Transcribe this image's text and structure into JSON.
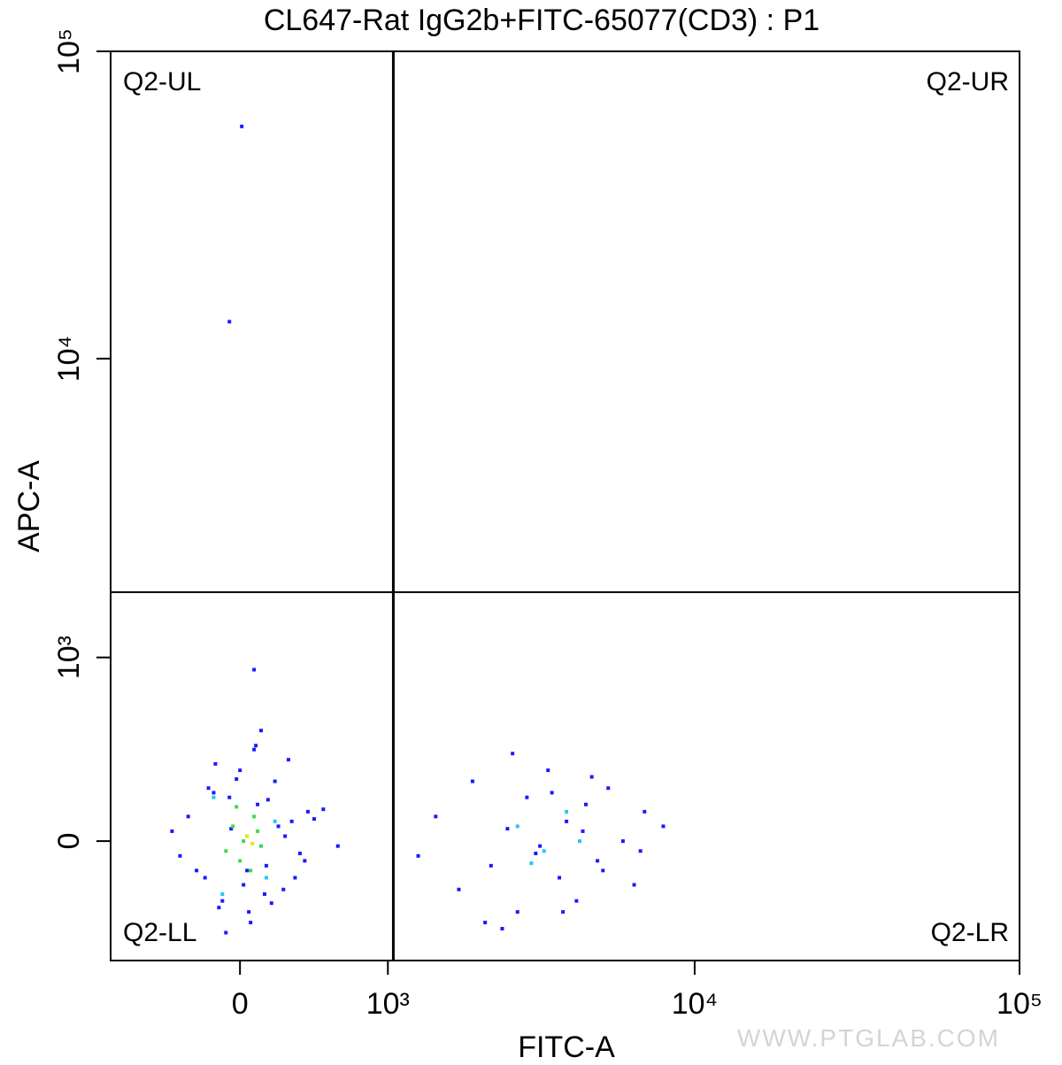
{
  "chart_data": {
    "type": "scatter",
    "title": "CL647-Rat IgG2b+FITC-65077(CD3) : P1",
    "x_label": "FITC-A",
    "y_label": "APC-A",
    "xscale": "biexponential",
    "yscale": "biexponential",
    "xlim": [
      -840,
      100000
    ],
    "ylim": [
      -550,
      100000
    ],
    "xticks": [
      0,
      {
        "value": 1000,
        "label": "10³"
      },
      {
        "value": 10000,
        "label": "10⁴"
      },
      {
        "value": 100000,
        "label": "10⁵"
      }
    ],
    "yticks": [
      0,
      {
        "value": 1000,
        "label": "10³"
      },
      {
        "value": 10000,
        "label": "10⁴"
      },
      {
        "value": 100000,
        "label": "10⁵"
      }
    ],
    "gate": {
      "x": 1050,
      "y": 1700
    },
    "quadrants": [
      "Q2-UL",
      "Q2-UR",
      "Q2-LL",
      "Q2-LR"
    ],
    "watermark": "WWW.PTGLAB.COM",
    "series": [
      {
        "color": "#1a1aff",
        "x": [
          -300,
          -200,
          -150,
          -100,
          -50,
          0,
          50,
          100,
          150,
          200,
          250,
          300,
          350,
          400,
          -250,
          -180,
          -120,
          -60,
          20,
          80,
          140,
          220,
          280,
          380,
          500,
          600,
          -400,
          -350,
          120,
          60,
          -20,
          180,
          260,
          320,
          440,
          -140,
          40,
          90,
          -80,
          160,
          1500,
          1800,
          2000,
          2300,
          2600,
          2800,
          3000,
          3200,
          3500,
          3800,
          4000,
          4300,
          4600,
          5000,
          5400,
          6000,
          6500,
          7000,
          8000,
          2200,
          2700,
          3300,
          3900,
          4500,
          5200,
          1300,
          2500,
          3600,
          4800,
          6800,
          10,
          -60,
          80
        ],
        "y": [
          100,
          -150,
          200,
          -250,
          50,
          300,
          -300,
          150,
          -100,
          250,
          -200,
          80,
          -50,
          120,
          -120,
          220,
          -280,
          180,
          -180,
          400,
          -220,
          60,
          350,
          -80,
          130,
          -20,
          40,
          -60,
          500,
          -350,
          260,
          -260,
          20,
          -150,
          90,
          330,
          -120,
          420,
          -400,
          170,
          100,
          -200,
          250,
          -100,
          50,
          -300,
          180,
          -50,
          300,
          -150,
          80,
          -250,
          150,
          -80,
          220,
          0,
          -180,
          120,
          60,
          -350,
          380,
          -20,
          -300,
          40,
          -120,
          -60,
          -380,
          200,
          270,
          -40,
          57000,
          13200,
          900
        ]
      },
      {
        "color": "#22c8f0",
        "x": [
          2800,
          3400,
          4000,
          4400,
          3100,
          -150,
          150,
          200,
          -100
        ],
        "y": [
          60,
          -40,
          120,
          0,
          -90,
          180,
          -150,
          80,
          -220
        ]
      },
      {
        "color": "#3cdc50",
        "x": [
          -80,
          -40,
          0,
          40,
          80,
          120,
          -20,
          60,
          100,
          20
        ],
        "y": [
          -40,
          60,
          -80,
          20,
          100,
          -20,
          140,
          -120,
          40,
          0
        ]
      },
      {
        "color": "#f0e020",
        "x": [
          40,
          70
        ],
        "y": [
          20,
          -10
        ]
      }
    ]
  }
}
